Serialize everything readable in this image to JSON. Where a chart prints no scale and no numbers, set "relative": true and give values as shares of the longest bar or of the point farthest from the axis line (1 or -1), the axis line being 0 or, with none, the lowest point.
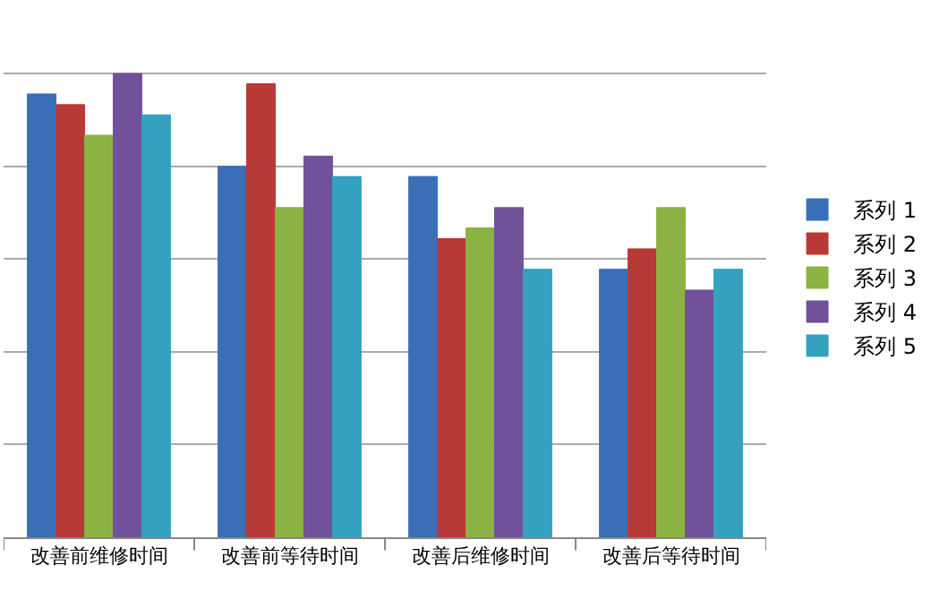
{
  "chart_data": {
    "type": "bar",
    "relative": true,
    "categories": [
      "改善前维修时间",
      "改善前等待时间",
      "改善后维修时间",
      "改善后等待时间"
    ],
    "series": [
      {
        "name": "系列 1",
        "color": "#3a6fb8",
        "values": [
          0.956,
          0.8,
          0.778,
          0.578
        ]
      },
      {
        "name": "系列 2",
        "color": "#b83a36",
        "values": [
          0.933,
          0.978,
          0.644,
          0.622
        ]
      },
      {
        "name": "系列 3",
        "color": "#8db244",
        "values": [
          0.867,
          0.711,
          0.667,
          0.711
        ]
      },
      {
        "name": "系列 4",
        "color": "#71529a",
        "values": [
          1,
          0.822,
          0.711,
          0.533
        ]
      },
      {
        "name": "系列 5",
        "color": "#35a1c0",
        "values": [
          0.911,
          0.778,
          0.578,
          0.578
        ]
      }
    ],
    "grid": "y",
    "legend": "right"
  }
}
